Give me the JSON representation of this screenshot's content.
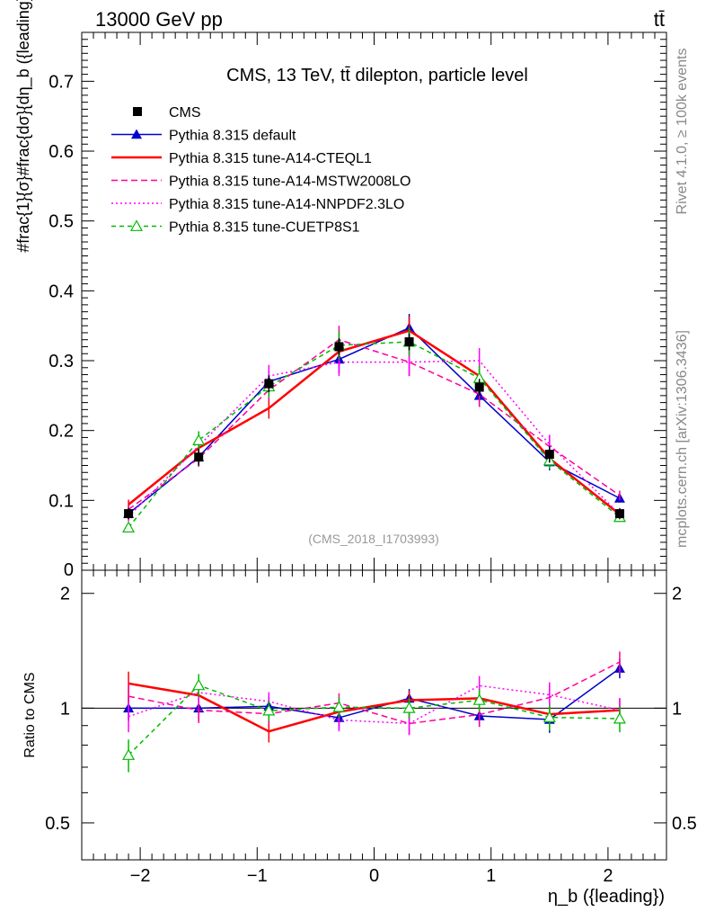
{
  "header": {
    "left": "13000 GeV pp",
    "right": "tt̄"
  },
  "side_labels": {
    "rivet": "Rivet 4.1.0, ≥ 100k events",
    "mcplots": "mcplots.cern.ch [arXiv:1306.3436]"
  },
  "chart_data": {
    "type": "line",
    "title": "CMS, 13 TeV, tt̄ dilepton, particle level",
    "watermark": "(CMS_2018_I1703993)",
    "xlabel": "η_b ({leading})",
    "ylabel": "#frac{1}{σ}#frac{dσ}{dη_b ({leading})}",
    "ratio_ylabel": "Ratio to CMS",
    "xlim": [
      -2.5,
      2.5
    ],
    "ylim": [
      0,
      0.77
    ],
    "ratio_ylim": [
      0.4,
      2.3
    ],
    "x": [
      -2.1,
      -1.5,
      -0.9,
      -0.3,
      0.3,
      0.9,
      1.5,
      2.1
    ],
    "x_ticks": [
      "−2",
      "−1",
      "0",
      "1",
      "2"
    ],
    "y_ticks": [
      "0.1",
      "0.2",
      "0.3",
      "0.4",
      "0.5",
      "0.6",
      "0.7"
    ],
    "y_zero_label": "0",
    "ratio_ticks": [
      "0.5",
      "1",
      "2"
    ],
    "legend_position": "top-left",
    "reference": {
      "name": "CMS",
      "color": "#000000",
      "marker": "square",
      "values": [
        0.081,
        0.162,
        0.267,
        0.32,
        0.327,
        0.262,
        0.166,
        0.081
      ],
      "errors": [
        0.008,
        0.012,
        0.012,
        0.012,
        0.012,
        0.012,
        0.012,
        0.008
      ]
    },
    "series": [
      {
        "name": "Pythia 8.315 default",
        "color": "#0000cc",
        "dash": "",
        "marker": "triangle",
        "values": [
          0.081,
          0.162,
          0.27,
          0.302,
          0.347,
          0.25,
          0.155,
          0.103
        ],
        "errors": [
          0.006,
          0.012,
          0.016,
          0.02,
          0.02,
          0.016,
          0.012,
          0.006
        ]
      },
      {
        "name": "Pythia 8.315 tune-A14-CTEQL1",
        "color": "#ff0000",
        "dash": "",
        "width": 2.5,
        "marker": "none",
        "values": [
          0.094,
          0.175,
          0.232,
          0.313,
          0.343,
          0.278,
          0.16,
          0.08
        ],
        "errors": [
          0.007,
          0.012,
          0.015,
          0.02,
          0.02,
          0.018,
          0.012,
          0.006
        ]
      },
      {
        "name": "Pythia 8.315 tune-A14-MSTW2008LO",
        "color": "#ff0099",
        "dash": "7,4",
        "marker": "none",
        "values": [
          0.087,
          0.16,
          0.258,
          0.33,
          0.298,
          0.252,
          0.177,
          0.107
        ],
        "errors": [
          0.007,
          0.012,
          0.016,
          0.02,
          0.02,
          0.018,
          0.014,
          0.007
        ]
      },
      {
        "name": "Pythia 8.315 tune-A14-NNPDF2.3LO",
        "color": "#ff00ff",
        "dash": "2,3",
        "marker": "none",
        "values": [
          0.077,
          0.178,
          0.278,
          0.298,
          0.298,
          0.3,
          0.18,
          0.08
        ],
        "errors": [
          0.007,
          0.012,
          0.016,
          0.02,
          0.02,
          0.018,
          0.014,
          0.006
        ]
      },
      {
        "name": "Pythia 8.315 tune-CUETP8S1",
        "color": "#00bb00",
        "dash": "5,4",
        "marker": "open-triangle",
        "values": [
          0.061,
          0.186,
          0.263,
          0.322,
          0.327,
          0.275,
          0.157,
          0.076
        ],
        "errors": [
          0.006,
          0.013,
          0.016,
          0.02,
          0.02,
          0.018,
          0.012,
          0.006
        ]
      }
    ]
  }
}
